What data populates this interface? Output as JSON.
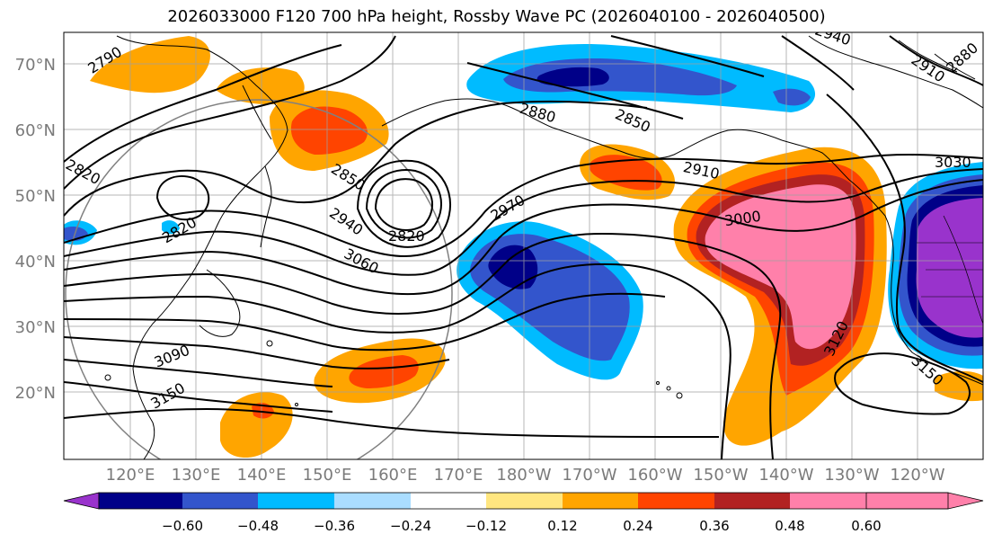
{
  "title": "2026033000 F120 700 hPa height, Rossby Wave PC (2026040100 - 2026040500)",
  "lat_labels": [
    "70°N",
    "60°N",
    "50°N",
    "40°N",
    "30°N",
    "20°N"
  ],
  "lon_labels": [
    "120°E",
    "130°E",
    "140°E",
    "150°E",
    "160°E",
    "170°E",
    "180°W",
    "170°W",
    "160°W",
    "150°W",
    "140°W",
    "130°W",
    "120°W"
  ],
  "contour_labels": [
    "2790",
    "2820",
    "2820",
    "2820",
    "2850",
    "2880",
    "2850",
    "2910",
    "2940",
    "2940",
    "2970",
    "3000",
    "3030",
    "3060",
    "3090",
    "3120",
    "3150",
    "3150",
    "2880",
    "2910"
  ],
  "colorbar": {
    "ticks": [
      "−0.60",
      "−0.48",
      "−0.36",
      "−0.24",
      "−0.12",
      "0.12",
      "0.24",
      "0.36",
      "0.48",
      "0.60"
    ],
    "colors": [
      "#9933cc",
      "#000088",
      "#3355cc",
      "#00bbff",
      "#aaddff",
      "#ffffff",
      "#ffe680",
      "#ffa500",
      "#ff4400",
      "#b22222",
      "#ff80aa"
    ]
  }
}
